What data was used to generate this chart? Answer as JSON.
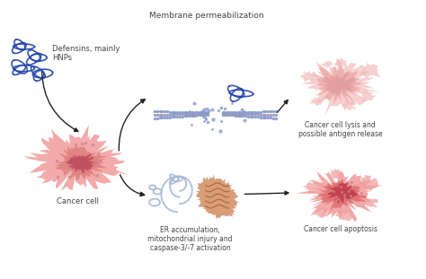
{
  "bg_color": "#ffffff",
  "fig_width": 4.74,
  "fig_height": 3.11,
  "dpi": 100,
  "labels": {
    "defensins": "Defensins, mainly\nHNPs",
    "cancer_cell": "Cancer cell",
    "membrane": "Membrane permeabilization",
    "lysis": "Cancer cell lysis and\npossible antigen release",
    "er": "ER accumulation,\nmitochondrial injury and\ncaspase-3/-7 activation",
    "apoptosis": "Cancer cell apoptosis"
  },
  "colors": {
    "cell_outer": "#f2aaaa",
    "cell_inner": "#e08080",
    "cell_nucleus": "#c05060",
    "cell_dots": "#cc8888",
    "blue_defensin": "#2244aa",
    "arrow_color": "#222222",
    "membrane_line": "#9999bb",
    "membrane_dot": "#8899cc",
    "lysis_outer": "#f5c0c0",
    "lysis_inner": "#e8a0a0",
    "lysis_bleb": "#f0b8b8",
    "apoptosis_cell": "#f0a0a0",
    "apoptosis_nucleus": "#c04050",
    "er_color": "#aabbd8",
    "mito_outer": "#c8845a",
    "mito_inner": "#a86040",
    "text_color": "#444444"
  }
}
